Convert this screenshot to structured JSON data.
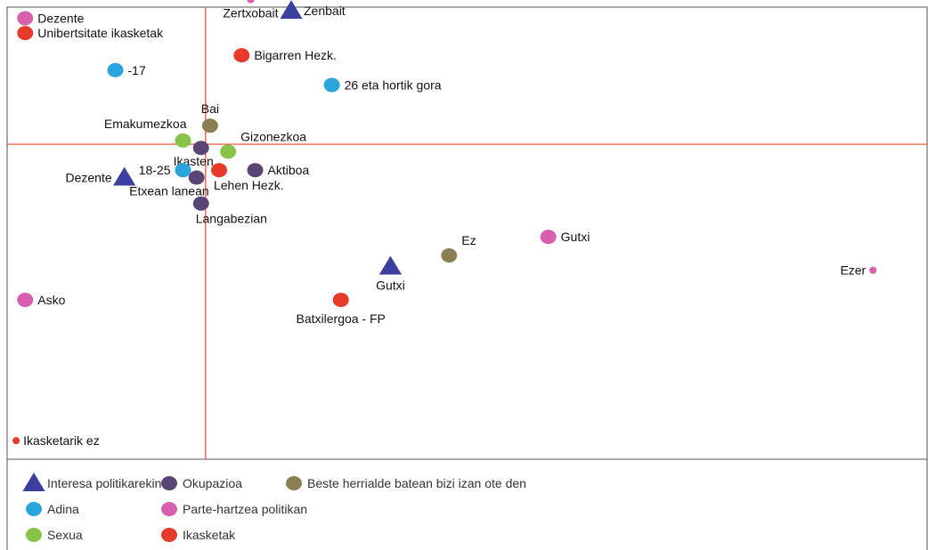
{
  "chart_data": {
    "type": "scatter",
    "title": "",
    "xlabel": "",
    "ylabel": "",
    "grid": false,
    "legend_position": "bottom",
    "xlim": [
      -0.22,
      0.8
    ],
    "ylim": [
      -0.85,
      0.37
    ],
    "axes_cross": [
      0,
      0
    ],
    "categories": [
      {
        "key": "interesa",
        "label": "Interesa politikarekin",
        "shape": "triangle",
        "color": "#3b3f9e"
      },
      {
        "key": "okupazioa",
        "label": "Okupazioa",
        "shape": "circle",
        "color": "#5a4575"
      },
      {
        "key": "herrialde",
        "label": "Beste herrialde batean bizi izan ote den",
        "shape": "circle",
        "color": "#8b7e52"
      },
      {
        "key": "adina",
        "label": "Adina",
        "shape": "circle",
        "color": "#2aa4dc"
      },
      {
        "key": "parte",
        "label": "Parte-hartzea politikan",
        "shape": "circle",
        "color": "#d85fae"
      },
      {
        "key": "sexua",
        "label": "Sexua",
        "shape": "circle",
        "color": "#86c348"
      },
      {
        "key": "ikasketak",
        "label": "Ikasketak",
        "shape": "circle",
        "color": "#e83a2a"
      }
    ],
    "points": [
      {
        "label": "Dezente",
        "category": "parte",
        "x": -0.2,
        "y": 0.34,
        "size": "medium",
        "label_pos": "right"
      },
      {
        "label": "Unibertsitate ikasketak",
        "category": "ikasketak",
        "x": -0.2,
        "y": 0.3,
        "size": "medium",
        "label_pos": "right"
      },
      {
        "label": "-17",
        "category": "adina",
        "x": -0.1,
        "y": 0.2,
        "size": "medium",
        "label_pos": "right"
      },
      {
        "label": "Zertxobait",
        "category": "parte",
        "x": 0.05,
        "y": 0.39,
        "size": "small",
        "label_pos": "below"
      },
      {
        "label": "Zenbait",
        "category": "interesa",
        "x": 0.095,
        "y": 0.36,
        "size": "medium",
        "label_pos": "right"
      },
      {
        "label": "Bigarren Hezk.",
        "category": "ikasketak",
        "x": 0.04,
        "y": 0.24,
        "size": "medium",
        "label_pos": "right"
      },
      {
        "label": "26 eta hortik gora",
        "category": "adina",
        "x": 0.14,
        "y": 0.16,
        "size": "medium",
        "label_pos": "right"
      },
      {
        "label": "Bai",
        "category": "herrialde",
        "x": 0.005,
        "y": 0.05,
        "size": "medium",
        "label_pos": "above"
      },
      {
        "label": "Emakumezkoa",
        "category": "sexua",
        "x": -0.025,
        "y": 0.01,
        "size": "medium",
        "label_pos": "above-left"
      },
      {
        "label": "Ikasten",
        "category": "okupazioa",
        "x": -0.005,
        "y": -0.01,
        "size": "medium",
        "label_pos": "below-left"
      },
      {
        "label": "Gizonezkoa",
        "category": "sexua",
        "x": 0.025,
        "y": -0.02,
        "size": "medium",
        "label_pos": "above-right"
      },
      {
        "label": "18-25",
        "category": "adina",
        "x": -0.025,
        "y": -0.07,
        "size": "medium",
        "label_pos": "left"
      },
      {
        "label": "Dezente",
        "category": "interesa",
        "x": -0.09,
        "y": -0.09,
        "size": "medium",
        "label_pos": "left"
      },
      {
        "label": "Etxean lanean",
        "category": "okupazioa",
        "x": -0.01,
        "y": -0.09,
        "size": "medium",
        "label_pos": "below-left"
      },
      {
        "label": "Lehen Hezk.",
        "category": "ikasketak",
        "x": 0.015,
        "y": -0.07,
        "size": "medium",
        "label_pos": "below-right"
      },
      {
        "label": "Aktiboa",
        "category": "okupazioa",
        "x": 0.055,
        "y": -0.07,
        "size": "medium",
        "label_pos": "right"
      },
      {
        "label": "Langabezian",
        "category": "okupazioa",
        "x": -0.005,
        "y": -0.16,
        "size": "medium",
        "label_pos": "below-right"
      },
      {
        "label": "Gutxi",
        "category": "parte",
        "x": 0.38,
        "y": -0.25,
        "size": "medium",
        "label_pos": "right"
      },
      {
        "label": "Ez",
        "category": "herrialde",
        "x": 0.27,
        "y": -0.3,
        "size": "medium",
        "label_pos": "above-right"
      },
      {
        "label": "Gutxi",
        "category": "interesa",
        "x": 0.205,
        "y": -0.33,
        "size": "medium",
        "label_pos": "below"
      },
      {
        "label": "Ezer",
        "category": "parte",
        "x": 0.74,
        "y": -0.34,
        "size": "small",
        "label_pos": "left"
      },
      {
        "label": "Asko",
        "category": "parte",
        "x": -0.2,
        "y": -0.42,
        "size": "medium",
        "label_pos": "right"
      },
      {
        "label": "Batxilergoa - FP",
        "category": "ikasketak",
        "x": 0.15,
        "y": -0.42,
        "size": "medium",
        "label_pos": "below"
      },
      {
        "label": "Ikasketarik ez",
        "category": "ikasketak",
        "x": -0.21,
        "y": -0.8,
        "size": "small",
        "label_pos": "right"
      }
    ]
  }
}
